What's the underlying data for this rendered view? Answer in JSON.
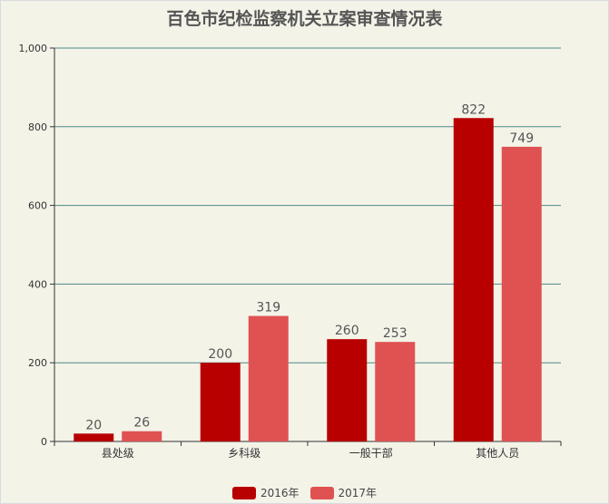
{
  "chart_data": {
    "type": "bar",
    "title": "百色市纪检监察机关立案审查情况表",
    "categories": [
      "县处级",
      "乡科级",
      "一般干部",
      "其他人员"
    ],
    "series": [
      {
        "name": "2016年",
        "color": "#b90000",
        "values": [
          20,
          200,
          260,
          822
        ]
      },
      {
        "name": "2017年",
        "color": "#e05252",
        "values": [
          26,
          319,
          253,
          749
        ]
      }
    ],
    "ylim": [
      0,
      1000
    ],
    "yticks": [
      "0",
      "200",
      "400",
      "600",
      "800",
      "1,000"
    ],
    "ytick_values": [
      0,
      200,
      400,
      600,
      800,
      1000
    ],
    "grid": true,
    "legend_position": "bottom-center",
    "gridline_color": "#4a8a86"
  }
}
